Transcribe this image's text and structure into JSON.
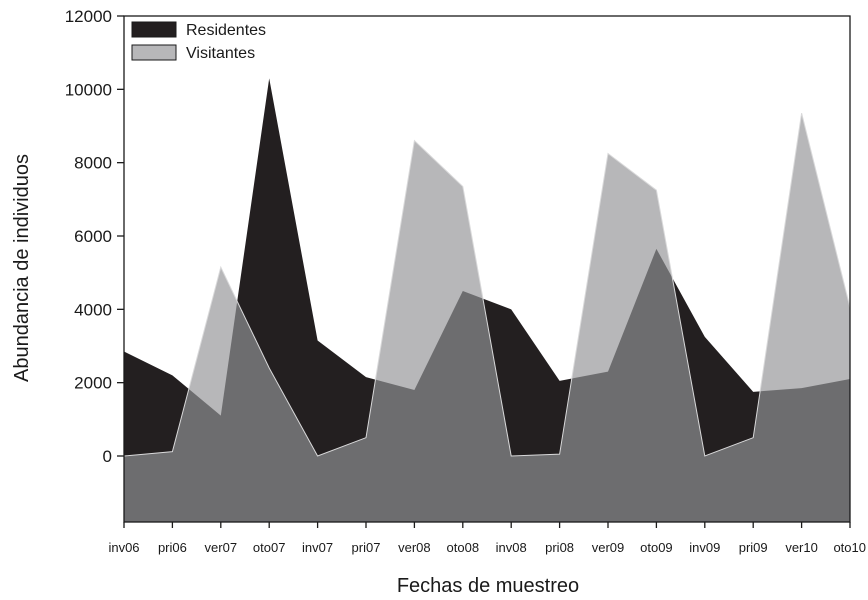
{
  "chart_data": {
    "type": "area",
    "categories": [
      "inv06",
      "pri06",
      "ver07",
      "oto07",
      "inv07",
      "pri07",
      "ver08",
      "oto08",
      "inv08",
      "pri08",
      "ver09",
      "oto09",
      "inv09",
      "pri09",
      "ver10",
      "oto10"
    ],
    "series": [
      {
        "name": "Residentes",
        "values": [
          2850,
          2200,
          1100,
          10300,
          3150,
          2150,
          1800,
          4500,
          4000,
          2050,
          2300,
          5650,
          3250,
          1750,
          1850,
          2100
        ]
      },
      {
        "name": "Visitantes",
        "values": [
          0,
          120,
          5150,
          2400,
          0,
          500,
          8600,
          7350,
          0,
          50,
          8250,
          7250,
          0,
          500,
          9350,
          4050
        ]
      }
    ],
    "colors": {
      "Residentes": "#231f20",
      "Visitantes": "#b7b7b9",
      "overlap": "#6d6d6f"
    },
    "title": "",
    "xlabel": "Fechas de muestreo",
    "ylabel": "Abundancia de individuos",
    "ylim": [
      -1800,
      12000
    ],
    "yticks": [
      0,
      2000,
      4000,
      6000,
      8000,
      10000,
      12000
    ],
    "legend_position": "top-left",
    "grid": false
  }
}
